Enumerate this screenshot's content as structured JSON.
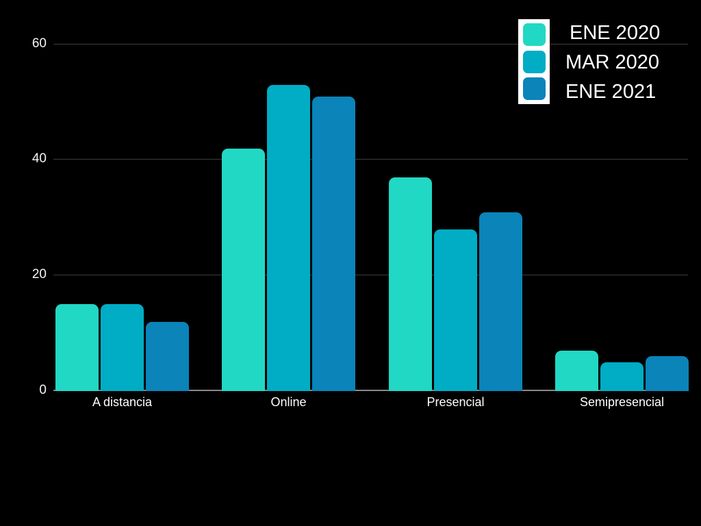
{
  "chart_data": {
    "type": "bar",
    "title": "",
    "categories": [
      "A distancia",
      "Online",
      "Presencial",
      "Semipresencial"
    ],
    "series": [
      {
        "name": "ENE 2020",
        "color": "#21D8C4",
        "values": [
          15,
          42,
          37,
          7
        ]
      },
      {
        "name": "MAR 2020",
        "color": "#00ADC4",
        "values": [
          15,
          53,
          28,
          5
        ]
      },
      {
        "name": "ENE 2021",
        "color": "#0A84B9",
        "values": [
          12,
          51,
          31,
          6
        ]
      }
    ],
    "yticks": [
      0,
      20,
      40,
      60
    ],
    "ylim": [
      0,
      60
    ],
    "xlabel": "",
    "ylabel": "",
    "grid": "horizontal",
    "legend_position": "top-right",
    "colors": {
      "background": "#000000",
      "text": "#FFFFFF",
      "gridline": "#3D3D3D",
      "axis_line": "#8A8A8A",
      "legend_panel": "#FFFFFF"
    }
  }
}
